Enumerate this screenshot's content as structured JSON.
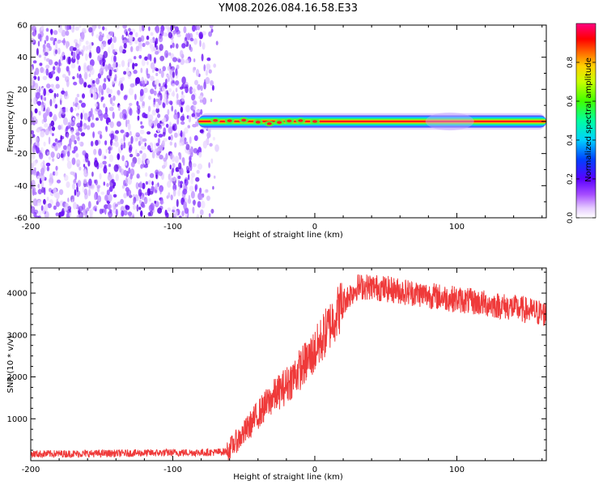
{
  "title": "YM08.2026.084.16.58.E33",
  "chart_data": [
    {
      "type": "heatmap",
      "name": "spectrogram",
      "xlabel": "Height of straight line (km)",
      "ylabel": "Frequency (Hz)",
      "xlim": [
        -200,
        163
      ],
      "ylim": [
        -60,
        60
      ],
      "x_ticks": [
        -200,
        -100,
        0,
        100
      ],
      "y_ticks": [
        -60,
        -40,
        -20,
        0,
        20,
        40,
        60
      ],
      "noise_region_km": [
        -200,
        -72
      ],
      "signal_start_km": -82,
      "signal_frequency_hz": 0,
      "signal_band_hz": [
        -2,
        2
      ],
      "colorbar": {
        "label": "Normalized spectral amplitude",
        "range": [
          0,
          1
        ],
        "ticks": [
          0.0,
          0.2,
          0.4,
          0.6,
          0.8
        ],
        "colormap": "rainbow (white-purple-blue-cyan-green-yellow-red-magenta)"
      }
    },
    {
      "type": "line",
      "name": "snr",
      "xlabel": "Height of straight line (km)",
      "ylabel": "SNR (10 * v/v)",
      "xlim": [
        -200,
        163
      ],
      "ylim": [
        0,
        4600
      ],
      "x_ticks": [
        -200,
        -100,
        0,
        100
      ],
      "y_ticks": [
        1000,
        2000,
        3000,
        4000
      ],
      "color": "#ef3a3a",
      "series": [
        {
          "name": "SNR",
          "x": [
            -200,
            -150,
            -100,
            -70,
            -62,
            -50,
            -40,
            -30,
            -20,
            -10,
            0,
            10,
            20,
            30,
            40,
            60,
            80,
            100,
            120,
            140,
            163
          ],
          "y": [
            160,
            170,
            190,
            200,
            220,
            650,
            1100,
            1500,
            1800,
            2200,
            2600,
            3200,
            3800,
            4150,
            4150,
            4050,
            3950,
            3850,
            3750,
            3650,
            3500
          ]
        }
      ]
    }
  ]
}
